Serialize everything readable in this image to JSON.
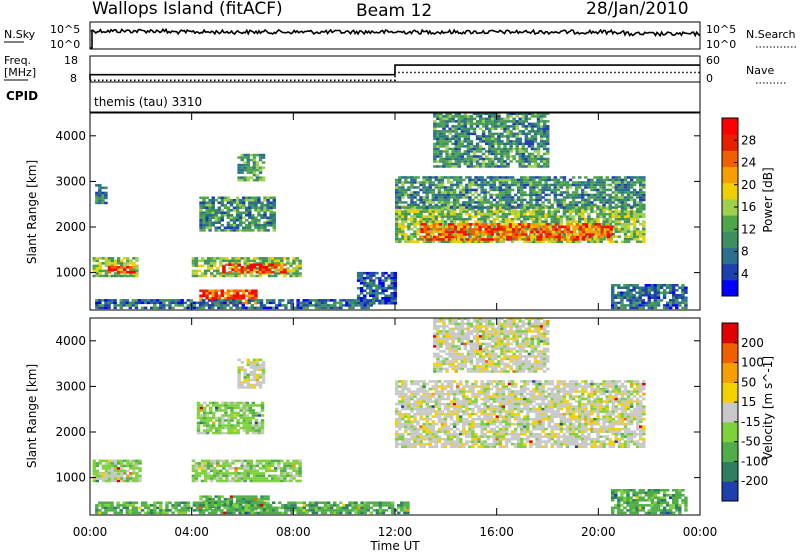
{
  "header": {
    "station": "Wallops Island (fitACF)",
    "beam": "Beam 12",
    "date": "28/Jan/2010"
  },
  "summary": {
    "nsky_label": "N.Sky",
    "nsearch_label": "N.Search",
    "freq_label": "Freq.",
    "freq_unit": "[MHz]",
    "nave_label": "Nave",
    "cpid_label": "CPID",
    "cpid_text": "themis (tau) 3310",
    "noise_ticks": [
      "10^5",
      "10^0"
    ],
    "noise_ticks_right": [
      "10^5",
      "10^0"
    ],
    "freq_ticks": [
      "18",
      "8"
    ],
    "nave_ticks": [
      "60",
      "0"
    ],
    "freq_mhz_segments": [
      {
        "start_ut": 0.0,
        "end_ut": 12.0,
        "value": 10.8
      },
      {
        "start_ut": 12.0,
        "end_ut": 24.0,
        "value": 14.5
      }
    ],
    "nave_segments": [
      {
        "start_ut": 0.0,
        "end_ut": 12.0,
        "value": 4
      },
      {
        "start_ut": 12.0,
        "end_ut": 24.0,
        "value": 22
      }
    ]
  },
  "chart_data": [
    {
      "type": "heatmap",
      "parameter": "Power",
      "xlabel": "Time UT",
      "ylabel": "Slant Range [km]",
      "xlim": [
        0,
        24
      ],
      "ylim": [
        180,
        4500
      ],
      "x_ticks": [
        "00:00",
        "04:00",
        "08:00",
        "12:00",
        "16:00",
        "20:00",
        "00:00"
      ],
      "x_tick_values": [
        0,
        4,
        8,
        12,
        16,
        20,
        24
      ],
      "y_ticks": [
        "4000",
        "3000",
        "2000",
        "1000"
      ],
      "y_tick_values": [
        4000,
        3000,
        2000,
        1000
      ],
      "colorbar": {
        "label": "Power [dB]",
        "tick_labels": [
          "28",
          "24",
          "20",
          "16",
          "12",
          "8",
          "4"
        ],
        "colors": [
          "#0000ff",
          "#1f3fae",
          "#2a6f8d",
          "#3e8f5f",
          "#4fa64a",
          "#9fcf4f",
          "#f0d000",
          "#f5a000",
          "#f06000",
          "#e82000",
          "#ff0000"
        ]
      },
      "regions": [
        {
          "t0": 0.1,
          "t1": 1.9,
          "r0": 900,
          "r1": 1300,
          "level": 0.45
        },
        {
          "t0": 0.7,
          "t1": 1.7,
          "r0": 980,
          "r1": 1120,
          "level": 0.85
        },
        {
          "t0": 0.2,
          "t1": 0.6,
          "r0": 2500,
          "r1": 2900,
          "level": 0.25
        },
        {
          "t0": 4.0,
          "t1": 8.3,
          "r0": 900,
          "r1": 1320,
          "level": 0.45
        },
        {
          "t0": 5.2,
          "t1": 7.7,
          "r0": 980,
          "r1": 1150,
          "level": 0.9
        },
        {
          "t0": 4.3,
          "t1": 7.2,
          "r0": 1900,
          "r1": 2650,
          "level": 0.3
        },
        {
          "t0": 5.8,
          "t1": 6.8,
          "r0": 3000,
          "r1": 3600,
          "level": 0.35
        },
        {
          "t0": 4.3,
          "t1": 6.5,
          "r0": 300,
          "r1": 600,
          "level": 0.85
        },
        {
          "t0": 12.0,
          "t1": 21.8,
          "r0": 1650,
          "r1": 2450,
          "level": 0.45
        },
        {
          "t0": 13.0,
          "t1": 20.5,
          "r0": 1700,
          "r1": 2050,
          "level": 0.8
        },
        {
          "t0": 12.0,
          "t1": 21.8,
          "r0": 2400,
          "r1": 3100,
          "level": 0.3
        },
        {
          "t0": 13.5,
          "t1": 18.0,
          "r0": 3300,
          "r1": 4500,
          "level": 0.3
        },
        {
          "t0": 0.2,
          "t1": 11.0,
          "r0": 200,
          "r1": 420,
          "level": 0.2
        },
        {
          "t0": 10.5,
          "t1": 12.0,
          "r0": 300,
          "r1": 1000,
          "level": 0.15
        },
        {
          "t0": 20.5,
          "t1": 23.5,
          "r0": 200,
          "r1": 700,
          "level": 0.2
        }
      ]
    },
    {
      "type": "heatmap",
      "parameter": "Velocity",
      "xlabel": "Time UT",
      "ylabel": "Slant Range [km]",
      "xlim": [
        0,
        24
      ],
      "ylim": [
        180,
        4500
      ],
      "x_ticks": [
        "00:00",
        "04:00",
        "08:00",
        "12:00",
        "16:00",
        "20:00",
        "00:00"
      ],
      "x_tick_values": [
        0,
        4,
        8,
        12,
        16,
        20,
        24
      ],
      "y_ticks": [
        "4000",
        "3000",
        "2000",
        "1000"
      ],
      "y_tick_values": [
        4000,
        3000,
        2000,
        1000
      ],
      "colorbar": {
        "label": "Velocity [m s^-1]",
        "tick_labels": [
          "200",
          "100",
          "50",
          "15",
          "-15",
          "-50",
          "-100",
          "-200"
        ],
        "colors": [
          "#1f3fae",
          "#2e7f5f",
          "#4fae4a",
          "#7ed13c",
          "#c8c8c8",
          "#f3d000",
          "#f5a000",
          "#f06000",
          "#e00000"
        ]
      },
      "regions": [
        {
          "t0": 0.1,
          "t1": 2.0,
          "r0": 900,
          "r1": 1380,
          "level": 3
        },
        {
          "t0": 0.1,
          "t1": 1.2,
          "r0": 950,
          "r1": 1100,
          "level": 4
        },
        {
          "t0": 4.0,
          "t1": 8.3,
          "r0": 900,
          "r1": 1350,
          "level": 3
        },
        {
          "t0": 4.2,
          "t1": 6.8,
          "r0": 1950,
          "r1": 2650,
          "level": 3
        },
        {
          "t0": 5.8,
          "t1": 6.8,
          "r0": 2950,
          "r1": 3600,
          "level": 4
        },
        {
          "t0": 4.3,
          "t1": 7.0,
          "r0": 280,
          "r1": 600,
          "level": 2
        },
        {
          "t0": 0.2,
          "t1": 12.5,
          "r0": 200,
          "r1": 450,
          "level": 2
        },
        {
          "t0": 12.0,
          "t1": 21.8,
          "r0": 1650,
          "r1": 3100,
          "level": 4
        },
        {
          "t0": 13.5,
          "t1": 18.0,
          "r0": 3300,
          "r1": 4500,
          "level": 4
        },
        {
          "t0": 20.5,
          "t1": 23.5,
          "r0": 200,
          "r1": 700,
          "level": 2
        }
      ]
    }
  ]
}
